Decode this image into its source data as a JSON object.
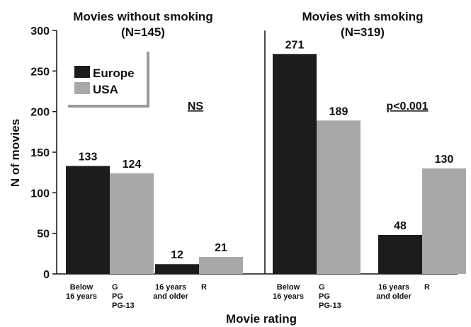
{
  "colors": {
    "europe": "#1c1c1c",
    "usa": "#a8a8a8",
    "axis": "#111111"
  },
  "chart_data": {
    "type": "bar",
    "ylabel": "N of movies",
    "xlabel": "Movie rating",
    "ylim": [
      0,
      300
    ],
    "yticks": [
      0,
      50,
      100,
      150,
      200,
      250,
      300
    ],
    "legend": {
      "placement": "top-left",
      "entries": [
        {
          "name": "Europe",
          "color": "#1c1c1c"
        },
        {
          "name": "USA",
          "color": "#a8a8a8"
        }
      ]
    },
    "panels": [
      {
        "title_line1": "Movies without smoking",
        "title_line2": "(N=145)",
        "annotation": "NS",
        "groups": [
          {
            "label_europe": [
              "Below",
              "16 years"
            ],
            "label_usa": [
              "G",
              "PG",
              "PG-13"
            ],
            "europe": 133,
            "usa": 124
          },
          {
            "label_europe": [
              "16 years",
              "and older"
            ],
            "label_usa": [
              "R"
            ],
            "europe": 12,
            "usa": 21
          }
        ]
      },
      {
        "title_line1": "Movies with smoking",
        "title_line2": "(N=319)",
        "annotation": "p<0.001",
        "groups": [
          {
            "label_europe": [
              "Below",
              "16 years"
            ],
            "label_usa": [
              "G",
              "PG",
              "PG-13"
            ],
            "europe": 271,
            "usa": 189
          },
          {
            "label_europe": [
              "16 years",
              "and older"
            ],
            "label_usa": [
              "R"
            ],
            "europe": 48,
            "usa": 130
          }
        ]
      }
    ]
  }
}
